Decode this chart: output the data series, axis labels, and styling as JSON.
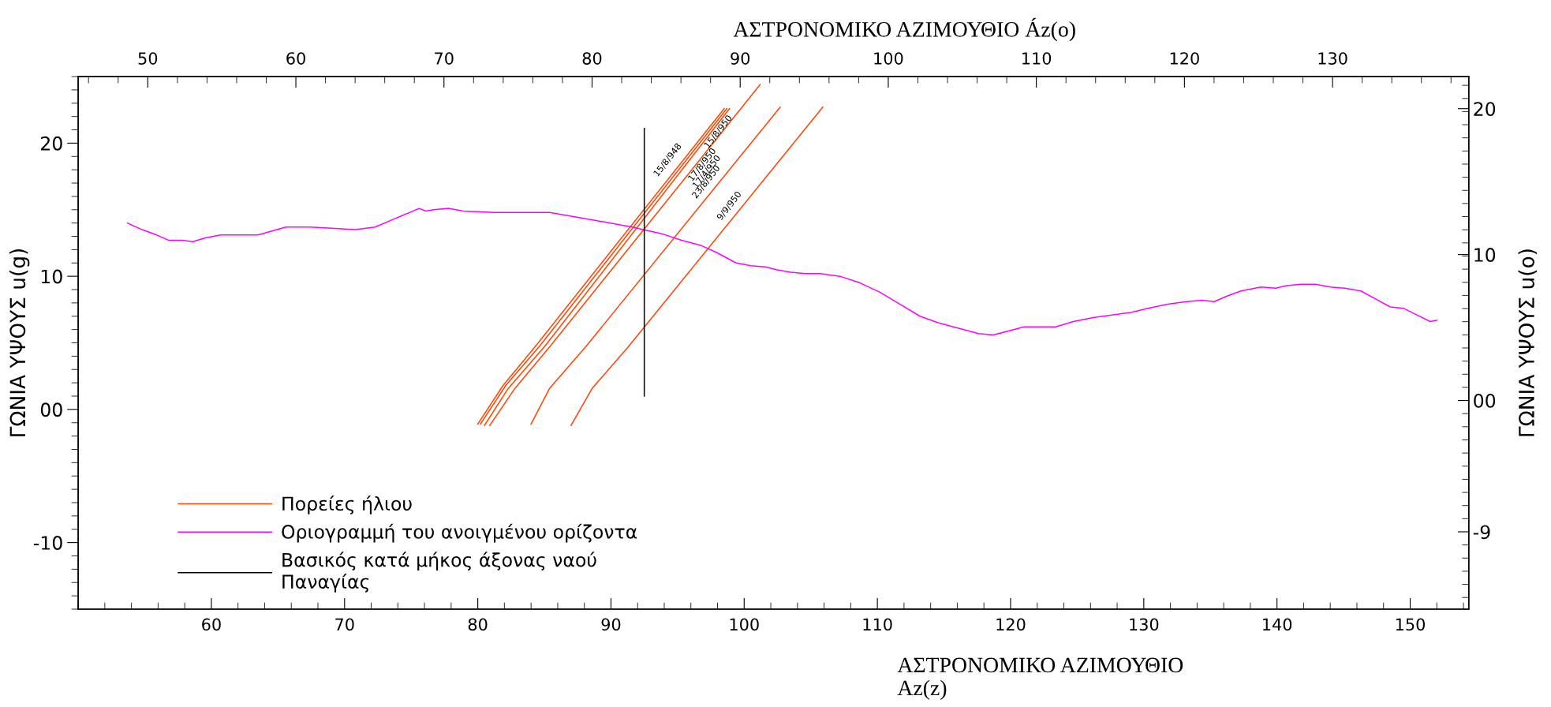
{
  "chart_data": {
    "type": "line",
    "xlabel": "ΑΣΤΡΟΝΟΜΙΚΟ ΑΖΙΜΟΥΘΙΟ\nAz(z)",
    "ylabel": "ΓΩΝΙΑ ΥΨΟΥΣ u(g)",
    "x2label": "ΑΣΤΡΟΝΟΜΙΚΟ ΑΖΙΜΟΥΘΙΟ Áz(o)",
    "y2label": "ΓΩΝΙΑ ΥΨΟΥΣ u(o)",
    "xlim": [
      50,
      154.4
    ],
    "xticks": [
      60,
      70,
      80,
      90,
      100,
      110,
      120,
      130,
      140,
      150
    ],
    "ylim": [
      -15,
      25
    ],
    "yticks": [
      -10,
      {
        "value": 0,
        "label": "00"
      },
      10,
      20
    ],
    "x2lim": [
      45.3,
      139.2
    ],
    "x2ticks": [
      50,
      60,
      70,
      80,
      90,
      100,
      110,
      120,
      130
    ],
    "y2lim": [
      -14.3,
      22.2
    ],
    "y2ticks": [
      -9,
      {
        "value": 0,
        "label": "00"
      },
      10,
      20
    ],
    "legend": "bottom left",
    "series": [
      {
        "name": "Πορείες ήλιου",
        "color": "#ff4500",
        "x": [
          80.0,
          81.9,
          84.3,
          98.5
        ],
        "values": [
          -1.1,
          1.8,
          4.7,
          22.6
        ]
      },
      {
        "color": "#ff4500",
        "x": [
          80.2,
          82.1,
          84.6,
          98.7
        ],
        "values": [
          -1.1,
          1.8,
          4.7,
          22.6
        ]
      },
      {
        "color": "#ff4500",
        "x": [
          80.5,
          82.3,
          85.0,
          98.9
        ],
        "values": [
          -1.2,
          1.6,
          4.7,
          22.6
        ]
      },
      {
        "color": "#ff4500",
        "x": [
          80.9,
          82.8,
          85.4,
          101.2
        ],
        "values": [
          -1.2,
          1.6,
          4.7,
          24.4
        ]
      },
      {
        "color": "#ff4500",
        "x": [
          84.0,
          85.4,
          88.1,
          102.7
        ],
        "values": [
          -1.1,
          1.6,
          4.7,
          22.7
        ]
      },
      {
        "color": "#ff4500",
        "x": [
          87.0,
          88.6,
          91.3,
          105.9
        ],
        "values": [
          -1.2,
          1.6,
          4.7,
          22.7
        ]
      },
      {
        "name": "Οριογραμμή του ανοιγμένου ορίζοντα",
        "color": "#ff00ff",
        "x": [
          53.7,
          54.8,
          55.9,
          56.8,
          57.8,
          58.6,
          59.6,
          60.7,
          61.8,
          63.5,
          65.6,
          67.4,
          69.3,
          70.8,
          72.3,
          73.7,
          74.9,
          75.6,
          76.1,
          76.7,
          77.8,
          78.9,
          81.2,
          83.4,
          85.4,
          87.1,
          89.4,
          91.6,
          93.8,
          95.3,
          96.8,
          97.9,
          99.4,
          100.5,
          101.6,
          102.4,
          103.5,
          104.6,
          105.7,
          107.2,
          108.7,
          110.2,
          111.7,
          113.2,
          114.6,
          116.1,
          117.6,
          118.7,
          119.9,
          121.0,
          122.5,
          123.4,
          124.7,
          126.2,
          127.7,
          129.1,
          130.3,
          131.8,
          133.2,
          134.4,
          135.3,
          136.2,
          137.3,
          138.8,
          139.9,
          140.7,
          141.8,
          142.9,
          144.0,
          145.1,
          146.3,
          147.4,
          148.5,
          149.5,
          150.5,
          151.5,
          152.0
        ],
        "values": [
          14.0,
          13.5,
          13.1,
          12.7,
          12.7,
          12.6,
          12.9,
          13.1,
          13.1,
          13.1,
          13.7,
          13.7,
          13.6,
          13.5,
          13.7,
          14.3,
          14.8,
          15.1,
          14.9,
          15.0,
          15.1,
          14.9,
          14.8,
          14.8,
          14.8,
          14.5,
          14.1,
          13.7,
          13.2,
          12.7,
          12.3,
          11.8,
          11.0,
          10.8,
          10.7,
          10.5,
          10.3,
          10.2,
          10.2,
          10.0,
          9.5,
          8.8,
          7.9,
          7.0,
          6.5,
          6.1,
          5.7,
          5.6,
          5.9,
          6.2,
          6.2,
          6.2,
          6.6,
          6.9,
          7.1,
          7.3,
          7.6,
          7.9,
          8.1,
          8.2,
          8.1,
          8.5,
          8.9,
          9.2,
          9.1,
          9.3,
          9.4,
          9.4,
          9.2,
          9.1,
          8.9,
          8.3,
          7.7,
          7.6,
          7.1,
          6.6,
          6.7
        ]
      },
      {
        "name": "Βασικός κατά μήκος άξονας ναού\nΠαναγίας",
        "color": "#000000",
        "x": [
          92.5,
          92.5
        ],
        "values": [
          21.1,
          1.0
        ]
      }
    ],
    "annotations": [
      "15/8/948",
      "15/8/950",
      "17/8/950",
      "17/4/950",
      "23/8/950",
      "9/9/950"
    ]
  }
}
